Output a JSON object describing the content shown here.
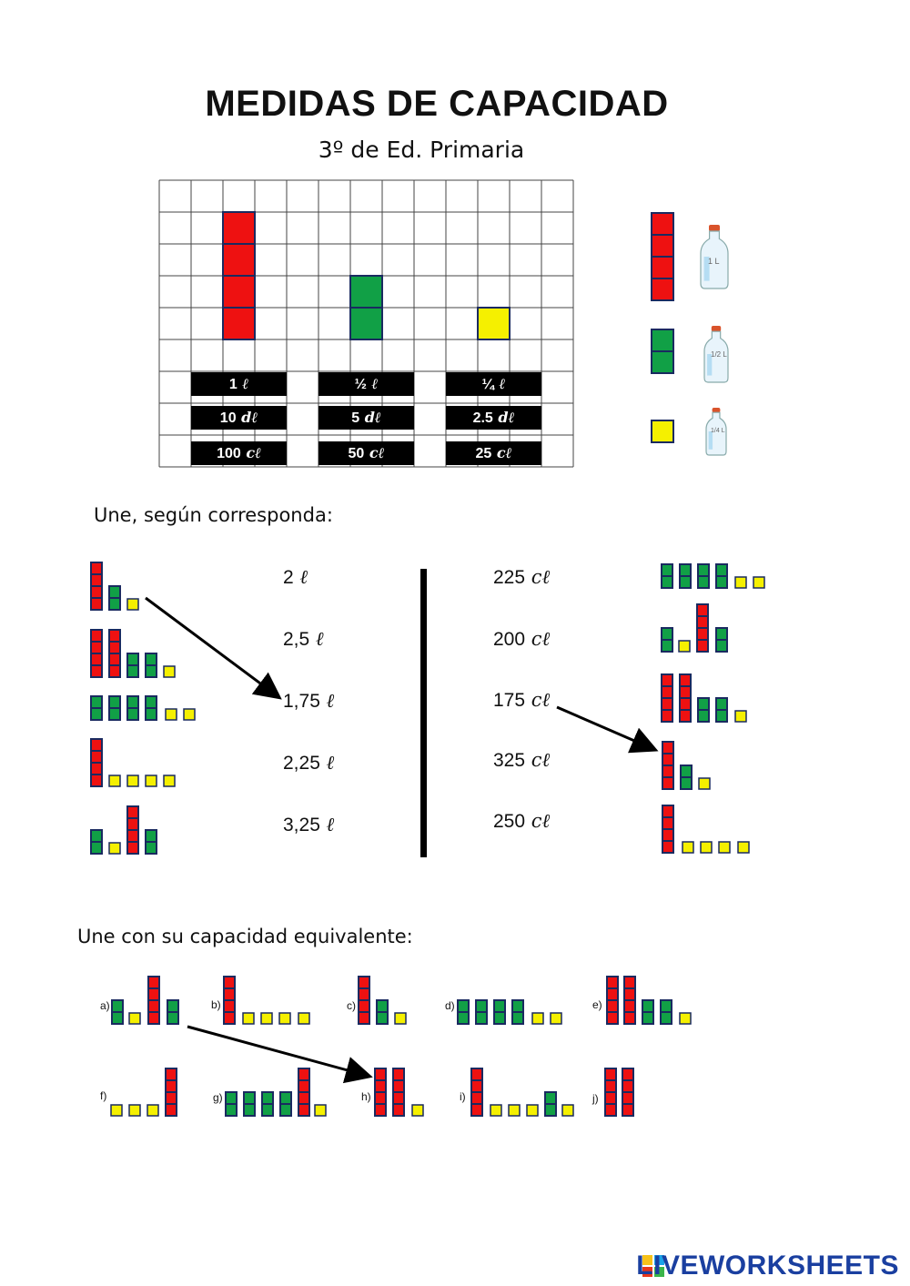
{
  "title": "MEDIDAS DE CAPACIDAD",
  "subtitle": "3º de Ed. Primaria",
  "legend": {
    "columns": [
      {
        "color_name": "red",
        "color": "#ee1111",
        "blocks": 4,
        "labels": [
          "1",
          "10",
          "100"
        ],
        "units": [
          "ℓ",
          "dℓ",
          "cℓ"
        ]
      },
      {
        "color_name": "green",
        "color": "#11a046",
        "blocks": 2,
        "labels": [
          "½",
          "5",
          "50"
        ],
        "units": [
          "ℓ",
          "dℓ",
          "cℓ"
        ]
      },
      {
        "color_name": "yellow",
        "color": "#f5f000",
        "blocks": 1,
        "labels": [
          "¼",
          "2.5",
          "25"
        ],
        "units": [
          "ℓ",
          "dℓ",
          "cℓ"
        ]
      }
    ],
    "bottles": [
      {
        "label": "1 L"
      },
      {
        "label": "1/2 L"
      },
      {
        "label": "1/4 L"
      }
    ]
  },
  "section1": {
    "instruction": "Une, según corresponda:",
    "left_values": [
      "2",
      "2,5",
      "1,75",
      "2,25",
      "3,25"
    ],
    "left_unit": "ℓ",
    "right_values": [
      "225",
      "200",
      "175",
      "325",
      "250"
    ],
    "right_unit": "cℓ"
  },
  "section2": {
    "instruction": "Une con su capacidad equivalente:",
    "letters": [
      "a)",
      "b)",
      "c)",
      "d)",
      "e)",
      "f)",
      "g)",
      "h)",
      "i)",
      "j)"
    ]
  },
  "brand": {
    "name": "LIVEWORKSHEETS"
  }
}
